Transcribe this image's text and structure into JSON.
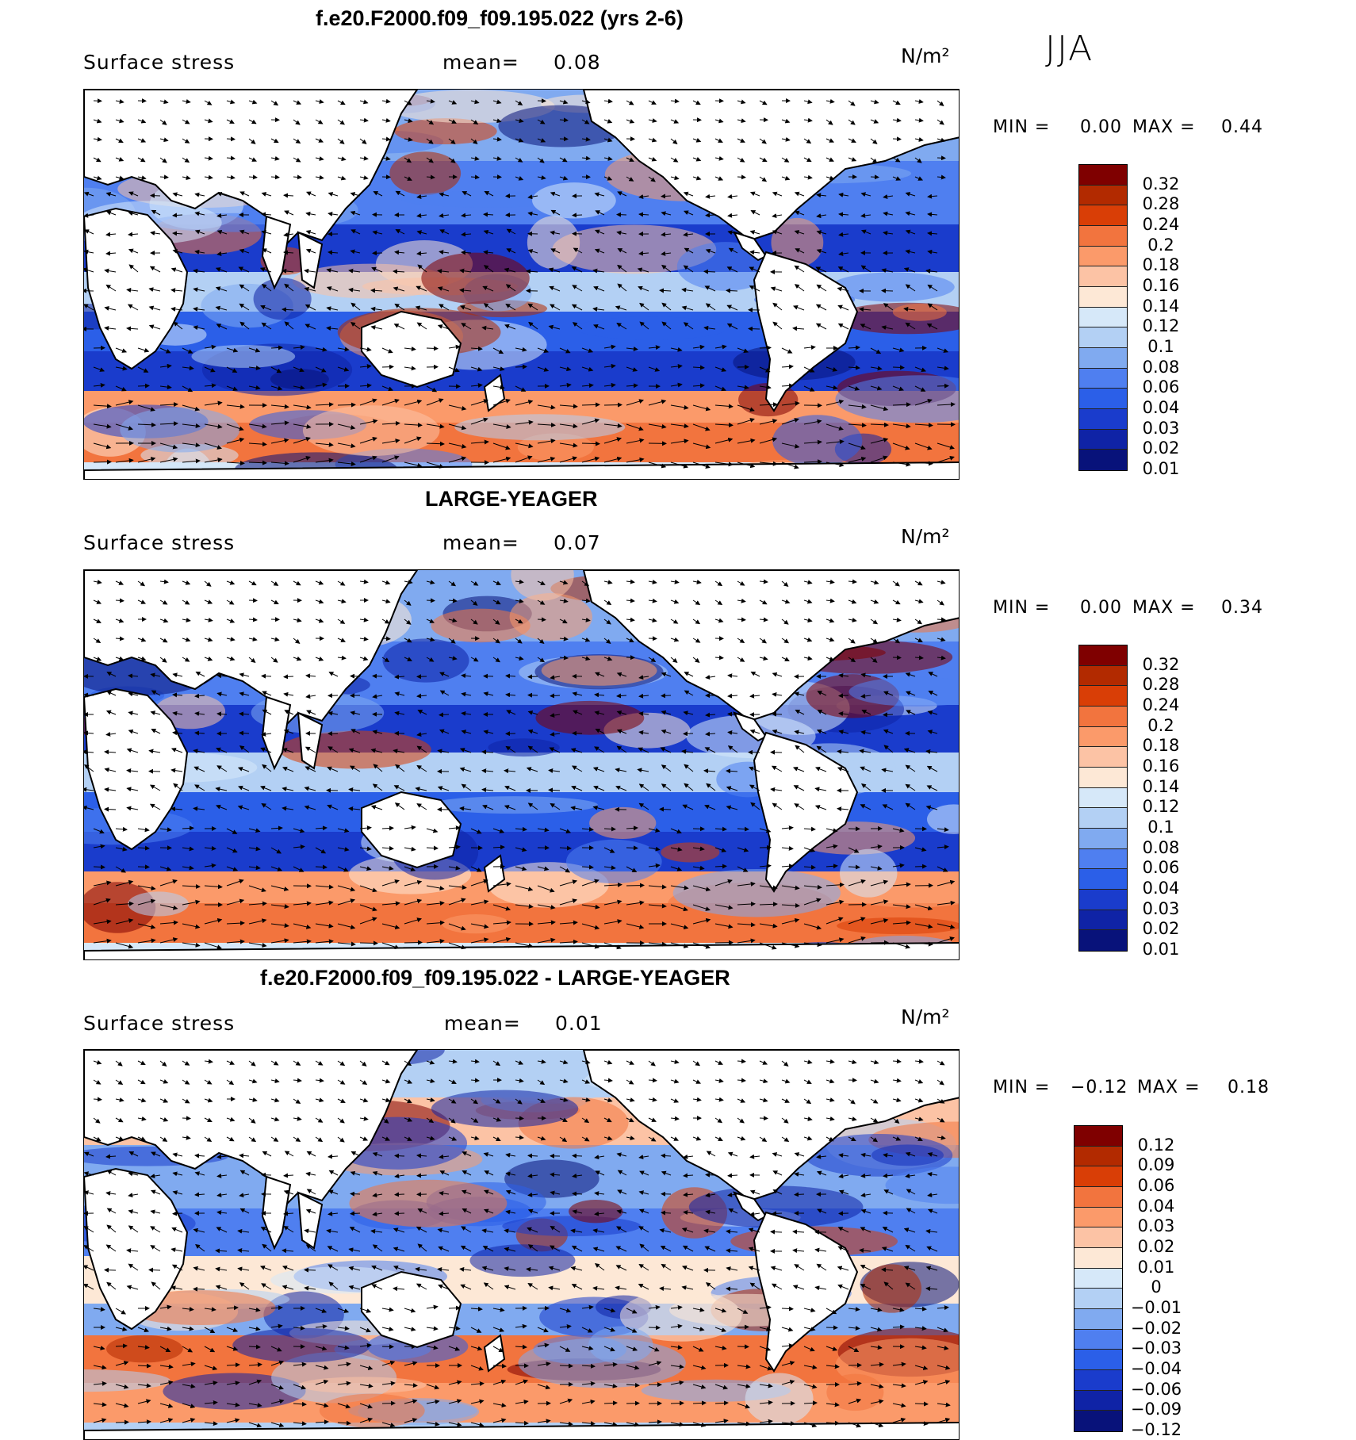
{
  "season": "JJA",
  "units": "N/m²",
  "panels": [
    {
      "title": "f.e20.F2000.f09_f09.195.022 (yrs 2-6)",
      "variable": "Surface stress",
      "mean_label": "mean=",
      "mean_value": "0.08",
      "units": "N/m²",
      "min_label": "MIN =",
      "min_value": "0.00",
      "max_label": "MAX =",
      "max_value": "0.44",
      "colorbar": {
        "colors": [
          "#7f0000",
          "#b22a00",
          "#d93e06",
          "#f2743e",
          "#fb9a6a",
          "#fcc3a5",
          "#fde8d6",
          "#d6e8f9",
          "#b3d0f4",
          "#80aaf0",
          "#4f7ff0",
          "#2b5fe8",
          "#1a3ccc",
          "#0f23a6",
          "#08127a"
        ],
        "labels": [
          "0.32",
          "0.28",
          "0.24",
          "0.2",
          "0.18",
          "0.16",
          "0.14",
          "0.12",
          "0.1",
          "0.08",
          "0.06",
          "0.04",
          "0.03",
          "0.02",
          "0.01"
        ]
      }
    },
    {
      "title": "LARGE-YEAGER",
      "variable": "Surface stress",
      "mean_label": "mean=",
      "mean_value": "0.07",
      "units": "N/m²",
      "min_label": "MIN =",
      "min_value": "0.00",
      "max_label": "MAX =",
      "max_value": "0.34",
      "colorbar": {
        "colors": [
          "#7f0000",
          "#b22a00",
          "#d93e06",
          "#f2743e",
          "#fb9a6a",
          "#fcc3a5",
          "#fde8d6",
          "#d6e8f9",
          "#b3d0f4",
          "#80aaf0",
          "#4f7ff0",
          "#2b5fe8",
          "#1a3ccc",
          "#0f23a6",
          "#08127a"
        ],
        "labels": [
          "0.32",
          "0.28",
          "0.24",
          "0.2",
          "0.18",
          "0.16",
          "0.14",
          "0.12",
          "0.1",
          "0.08",
          "0.06",
          "0.04",
          "0.03",
          "0.02",
          "0.01"
        ]
      }
    },
    {
      "title": "f.e20.F2000.f09_f09.195.022 - LARGE-YEAGER",
      "variable": "Surface stress",
      "mean_label": "mean=",
      "mean_value": "0.01",
      "units": "N/m²",
      "min_label": "MIN =",
      "min_value": "−0.12",
      "max_label": "MAX =",
      "max_value": "0.18",
      "colorbar": {
        "colors": [
          "#7f0000",
          "#b22a00",
          "#d93e06",
          "#f2743e",
          "#fb9a6a",
          "#fcc3a5",
          "#fde8d6",
          "#d6e8f9",
          "#b3d0f4",
          "#80aaf0",
          "#4f7ff0",
          "#2b5fe8",
          "#1a3ccc",
          "#0f23a6",
          "#08127a"
        ],
        "labels": [
          "0.12",
          "0.09",
          "0.06",
          "0.04",
          "0.03",
          "0.02",
          "0.01",
          "0",
          "−0.01",
          "−0.02",
          "−0.03",
          "−0.04",
          "−0.06",
          "−0.09",
          "−0.12"
        ]
      }
    }
  ]
}
